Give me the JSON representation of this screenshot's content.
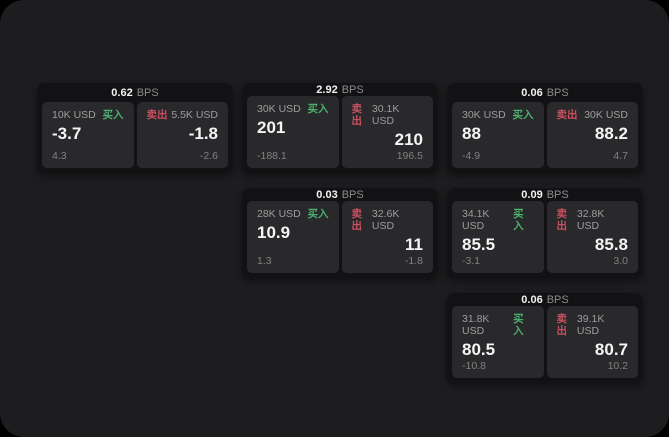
{
  "page": {
    "background": "#000000",
    "surface_color": "#1d1d1f",
    "card_color": "#121214",
    "panel_color": "#29292c"
  },
  "colors": {
    "buy_green": "#4caf6e",
    "sell_red": "#c9505f",
    "value_white": "#f5f5f5",
    "label_gray": "#9d9d9d",
    "sub_gray": "#818180"
  },
  "labels": {
    "bps_unit": "BPS",
    "buy": "买入",
    "sell": "卖出"
  },
  "cards": [
    {
      "bps": "0.62",
      "col": 1,
      "row": 1,
      "buy": {
        "amount": "10K USD",
        "value": "-3.7",
        "sub": "4.3"
      },
      "sell": {
        "amount": "5.5K USD",
        "value": "-1.8",
        "sub": "-2.6"
      }
    },
    {
      "bps": "2.92",
      "col": 2,
      "row": 1,
      "buy": {
        "amount": "30K USD",
        "value": "201",
        "sub": "-188.1"
      },
      "sell": {
        "amount": "30.1K USD",
        "value": "210",
        "sub": "196.5"
      }
    },
    {
      "bps": "0.06",
      "col": 3,
      "row": 1,
      "buy": {
        "amount": "30K USD",
        "value": "88",
        "sub": "-4.9"
      },
      "sell": {
        "amount": "30K USD",
        "value": "88.2",
        "sub": "4.7"
      }
    },
    {
      "bps": "0.03",
      "col": 2,
      "row": 2,
      "buy": {
        "amount": "28K USD",
        "value": "10.9",
        "sub": "1.3"
      },
      "sell": {
        "amount": "32.6K USD",
        "value": "11",
        "sub": "-1.8"
      }
    },
    {
      "bps": "0.09",
      "col": 3,
      "row": 2,
      "buy": {
        "amount": "34.1K USD",
        "value": "85.5",
        "sub": "-3.1"
      },
      "sell": {
        "amount": "32.8K USD",
        "value": "85.8",
        "sub": "3.0"
      }
    },
    {
      "bps": "0.06",
      "col": 3,
      "row": 3,
      "buy": {
        "amount": "31.8K USD",
        "value": "80.5",
        "sub": "-10.8"
      },
      "sell": {
        "amount": "39.1K USD",
        "value": "80.7",
        "sub": "10.2"
      }
    }
  ]
}
